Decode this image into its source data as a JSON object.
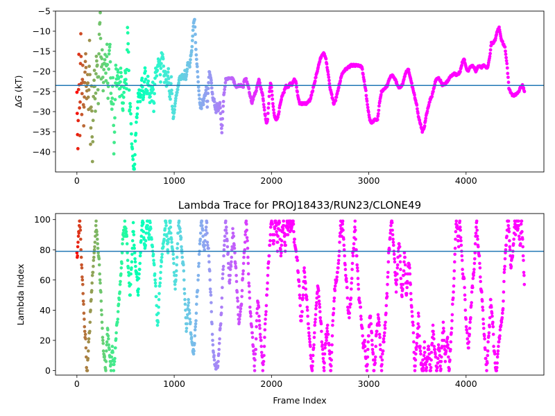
{
  "chart_data": [
    {
      "type": "scatter",
      "title": "",
      "xlabel": "",
      "ylabel": "ΔG (kT)",
      "ylabel_delta": "Δ",
      "ylabel_var": "G",
      "ylabel_unit": "(kT)",
      "xlim": [
        -220,
        4800
      ],
      "ylim": [
        -45,
        -5
      ],
      "xticks": [
        0,
        1000,
        2000,
        3000,
        4000
      ],
      "xtick_labels": [
        "0",
        "1000",
        "2000",
        "3000",
        "4000"
      ],
      "yticks": [
        -40,
        -35,
        -30,
        -25,
        -20,
        -15,
        -10,
        -5
      ],
      "ytick_labels": [
        "−40",
        "−35",
        "−30",
        "−25",
        "−20",
        "−15",
        "−10",
        "−5"
      ],
      "hline": -23.5,
      "hline_color": "#1f77b4",
      "colormap": "rainbow",
      "grid": false,
      "n_frames": 4600,
      "trace": [
        [
          0,
          -25
        ],
        [
          10,
          -40
        ],
        [
          20,
          -16
        ],
        [
          30,
          -36
        ],
        [
          40,
          -10
        ],
        [
          50,
          -30
        ],
        [
          60,
          -18
        ],
        [
          70,
          -33
        ],
        [
          80,
          -22
        ],
        [
          90,
          -15
        ],
        [
          100,
          -27
        ],
        [
          110,
          -20
        ],
        [
          120,
          -30
        ],
        [
          130,
          -12
        ],
        [
          140,
          -38
        ],
        [
          150,
          -24
        ],
        [
          160,
          -43
        ],
        [
          170,
          -26
        ],
        [
          180,
          -20
        ],
        [
          190,
          -30
        ],
        [
          200,
          -16
        ],
        [
          210,
          -19
        ],
        [
          220,
          -28
        ],
        [
          230,
          -10
        ],
        [
          240,
          -6
        ],
        [
          250,
          -22
        ],
        [
          260,
          -14
        ],
        [
          270,
          -25
        ],
        [
          280,
          -18
        ],
        [
          290,
          -16
        ],
        [
          300,
          -22
        ],
        [
          310,
          -13
        ],
        [
          320,
          -27
        ],
        [
          330,
          -15
        ],
        [
          340,
          -13
        ],
        [
          350,
          -26
        ],
        [
          360,
          -30
        ],
        [
          370,
          -21
        ],
        [
          380,
          -40
        ],
        [
          390,
          -32
        ],
        [
          400,
          -18
        ],
        [
          410,
          -24
        ],
        [
          420,
          -20
        ],
        [
          430,
          -22
        ],
        [
          440,
          -26
        ],
        [
          450,
          -20
        ],
        [
          460,
          -23
        ],
        [
          470,
          -30
        ],
        [
          480,
          -27
        ],
        [
          490,
          -22
        ],
        [
          500,
          -20
        ],
        [
          510,
          -24
        ],
        [
          520,
          -9
        ],
        [
          530,
          -15
        ],
        [
          540,
          -30
        ],
        [
          550,
          -28
        ],
        [
          560,
          -36
        ],
        [
          570,
          -40
        ],
        [
          580,
          -43
        ],
        [
          590,
          -45
        ],
        [
          600,
          -38
        ],
        [
          610,
          -33
        ],
        [
          620,
          -30
        ],
        [
          630,
          -26
        ],
        [
          640,
          -25
        ],
        [
          650,
          -28
        ],
        [
          660,
          -24
        ],
        [
          670,
          -22
        ],
        [
          680,
          -27
        ],
        [
          690,
          -25
        ],
        [
          700,
          -19
        ],
        [
          710,
          -24
        ],
        [
          720,
          -26
        ],
        [
          730,
          -22
        ],
        [
          740,
          -25
        ],
        [
          750,
          -28
        ],
        [
          760,
          -23
        ],
        [
          770,
          -27
        ],
        [
          780,
          -22
        ],
        [
          790,
          -30
        ],
        [
          800,
          -24
        ],
        [
          810,
          -19
        ],
        [
          820,
          -21
        ],
        [
          830,
          -19
        ],
        [
          840,
          -17
        ],
        [
          850,
          -18
        ],
        [
          860,
          -22
        ],
        [
          870,
          -16
        ],
        [
          880,
          -16
        ],
        [
          890,
          -18
        ],
        [
          900,
          -22
        ],
        [
          910,
          -20
        ],
        [
          920,
          -24
        ],
        [
          930,
          -22
        ],
        [
          940,
          -20
        ],
        [
          950,
          -25
        ],
        [
          960,
          -27
        ],
        [
          970,
          -22
        ],
        [
          980,
          -28
        ],
        [
          990,
          -31
        ],
        [
          1000,
          -30
        ],
        [
          1010,
          -28
        ],
        [
          1020,
          -26
        ],
        [
          1030,
          -25
        ],
        [
          1040,
          -24
        ],
        [
          1050,
          -22
        ],
        [
          1060,
          -21
        ],
        [
          1070,
          -22
        ],
        [
          1080,
          -21
        ],
        [
          1090,
          -21
        ],
        [
          1100,
          -22
        ],
        [
          1110,
          -20
        ],
        [
          1120,
          -22
        ],
        [
          1130,
          -20
        ],
        [
          1140,
          -18
        ],
        [
          1150,
          -18
        ],
        [
          1160,
          -19
        ],
        [
          1170,
          -16
        ],
        [
          1180,
          -15
        ],
        [
          1190,
          -11
        ],
        [
          1200,
          -8
        ],
        [
          1210,
          -7
        ],
        [
          1220,
          -13
        ],
        [
          1230,
          -17
        ],
        [
          1240,
          -20
        ],
        [
          1250,
          -24
        ],
        [
          1260,
          -27
        ],
        [
          1270,
          -29
        ],
        [
          1280,
          -29
        ],
        [
          1290,
          -27
        ],
        [
          1300,
          -28
        ],
        [
          1310,
          -26
        ],
        [
          1320,
          -26
        ],
        [
          1330,
          -24
        ],
        [
          1340,
          -29
        ],
        [
          1350,
          -24
        ],
        [
          1360,
          -20
        ],
        [
          1370,
          -21
        ],
        [
          1380,
          -22
        ],
        [
          1390,
          -25
        ],
        [
          1400,
          -27
        ],
        [
          1410,
          -27
        ],
        [
          1420,
          -29
        ],
        [
          1430,
          -30
        ],
        [
          1440,
          -28
        ],
        [
          1450,
          -30
        ],
        [
          1460,
          -29
        ],
        [
          1470,
          -28
        ],
        [
          1480,
          -32
        ],
        [
          1490,
          -35
        ],
        [
          1500,
          -30
        ],
        [
          1510,
          -26
        ],
        [
          1530,
          -22
        ],
        [
          1560,
          -21.7
        ],
        [
          1600,
          -21.7
        ],
        [
          1620,
          -23
        ],
        [
          1640,
          -24
        ],
        [
          1660,
          -23.5
        ],
        [
          1690,
          -23.5
        ],
        [
          1710,
          -24
        ],
        [
          1720,
          -22
        ],
        [
          1740,
          -22
        ],
        [
          1760,
          -23.5
        ],
        [
          1780,
          -26
        ],
        [
          1800,
          -28
        ],
        [
          1820,
          -26
        ],
        [
          1840,
          -25
        ],
        [
          1860,
          -23
        ],
        [
          1870,
          -22
        ],
        [
          1880,
          -23
        ],
        [
          1900,
          -25
        ],
        [
          1910,
          -26
        ],
        [
          1920,
          -28
        ],
        [
          1940,
          -32
        ],
        [
          1950,
          -33
        ],
        [
          1960,
          -32
        ],
        [
          1980,
          -25
        ],
        [
          1990,
          -23
        ],
        [
          2000,
          -24
        ],
        [
          2010,
          -27
        ],
        [
          2030,
          -31
        ],
        [
          2050,
          -32
        ],
        [
          2070,
          -31
        ],
        [
          2090,
          -28
        ],
        [
          2110,
          -26
        ],
        [
          2130,
          -25
        ],
        [
          2150,
          -23.5
        ],
        [
          2170,
          -24
        ],
        [
          2190,
          -23
        ],
        [
          2210,
          -23.5
        ],
        [
          2230,
          -22
        ],
        [
          2250,
          -22.5
        ],
        [
          2270,
          -26
        ],
        [
          2290,
          -28
        ],
        [
          2320,
          -28
        ],
        [
          2360,
          -28
        ],
        [
          2400,
          -27
        ],
        [
          2420,
          -25
        ],
        [
          2440,
          -23
        ],
        [
          2460,
          -21
        ],
        [
          2480,
          -19
        ],
        [
          2500,
          -17
        ],
        [
          2520,
          -16
        ],
        [
          2540,
          -15.5
        ],
        [
          2560,
          -17
        ],
        [
          2580,
          -20
        ],
        [
          2600,
          -24
        ],
        [
          2620,
          -26
        ],
        [
          2640,
          -28
        ],
        [
          2660,
          -27
        ],
        [
          2680,
          -25
        ],
        [
          2700,
          -23
        ],
        [
          2720,
          -21
        ],
        [
          2740,
          -20
        ],
        [
          2760,
          -19.5
        ],
        [
          2790,
          -19
        ],
        [
          2820,
          -18.5
        ],
        [
          2860,
          -18.5
        ],
        [
          2900,
          -18.5
        ],
        [
          2930,
          -19
        ],
        [
          2950,
          -22
        ],
        [
          2970,
          -25
        ],
        [
          2990,
          -29
        ],
        [
          3010,
          -32
        ],
        [
          3030,
          -33
        ],
        [
          3060,
          -32
        ],
        [
          3090,
          -32
        ],
        [
          3110,
          -28
        ],
        [
          3130,
          -25
        ],
        [
          3150,
          -24.5
        ],
        [
          3170,
          -24
        ],
        [
          3190,
          -23.5
        ],
        [
          3210,
          -22
        ],
        [
          3230,
          -21
        ],
        [
          3250,
          -21
        ],
        [
          3270,
          -22
        ],
        [
          3290,
          -23
        ],
        [
          3310,
          -24
        ],
        [
          3330,
          -24
        ],
        [
          3350,
          -23
        ],
        [
          3370,
          -21
        ],
        [
          3390,
          -20
        ],
        [
          3410,
          -19.5
        ],
        [
          3430,
          -22
        ],
        [
          3450,
          -24
        ],
        [
          3470,
          -26
        ],
        [
          3490,
          -28
        ],
        [
          3510,
          -31
        ],
        [
          3530,
          -33
        ],
        [
          3550,
          -35
        ],
        [
          3570,
          -34
        ],
        [
          3590,
          -31
        ],
        [
          3610,
          -29
        ],
        [
          3630,
          -27
        ],
        [
          3650,
          -26
        ],
        [
          3670,
          -24
        ],
        [
          3690,
          -22
        ],
        [
          3710,
          -21.5
        ],
        [
          3730,
          -22
        ],
        [
          3760,
          -23.5
        ],
        [
          3790,
          -23
        ],
        [
          3820,
          -22
        ],
        [
          3850,
          -21
        ],
        [
          3880,
          -20.5
        ],
        [
          3910,
          -21
        ],
        [
          3940,
          -20
        ],
        [
          3960,
          -18
        ],
        [
          3980,
          -17
        ],
        [
          4000,
          -19
        ],
        [
          4020,
          -20
        ],
        [
          4040,
          -19
        ],
        [
          4060,
          -18.5
        ],
        [
          4080,
          -19
        ],
        [
          4100,
          -20
        ],
        [
          4120,
          -19
        ],
        [
          4140,
          -18.5
        ],
        [
          4160,
          -19
        ],
        [
          4180,
          -18.5
        ],
        [
          4200,
          -19
        ],
        [
          4220,
          -19
        ],
        [
          4240,
          -17
        ],
        [
          4260,
          -13
        ],
        [
          4280,
          -13
        ],
        [
          4300,
          -12
        ],
        [
          4320,
          -10
        ],
        [
          4340,
          -9
        ],
        [
          4360,
          -12
        ],
        [
          4380,
          -13
        ],
        [
          4400,
          -14
        ],
        [
          4420,
          -18
        ],
        [
          4440,
          -24
        ],
        [
          4460,
          -25.5
        ],
        [
          4480,
          -26
        ],
        [
          4500,
          -26
        ],
        [
          4520,
          -25.5
        ],
        [
          4540,
          -25
        ],
        [
          4560,
          -24
        ],
        [
          4580,
          -23.5
        ],
        [
          4600,
          -25
        ]
      ]
    },
    {
      "type": "scatter",
      "title": "Lambda Trace for PROJ18433/RUN23/CLONE49",
      "xlabel": "Frame Index",
      "ylabel": "Lambda Index",
      "xlim": [
        -220,
        4800
      ],
      "ylim": [
        -3,
        104
      ],
      "xticks": [
        0,
        1000,
        2000,
        3000,
        4000
      ],
      "xtick_labels": [
        "0",
        "1000",
        "2000",
        "3000",
        "4000"
      ],
      "yticks": [
        0,
        20,
        40,
        60,
        80,
        100
      ],
      "ytick_labels": [
        "0",
        "20",
        "40",
        "60",
        "80",
        "100"
      ],
      "hline": 79,
      "hline_color": "#1f77b4",
      "colormap": "rainbow",
      "grid": false,
      "n_frames": 4600,
      "value_range": [
        0,
        99
      ],
      "pattern": "each frame lambda index between 0 and 99, sweeping up and down in vertical streaks"
    }
  ]
}
